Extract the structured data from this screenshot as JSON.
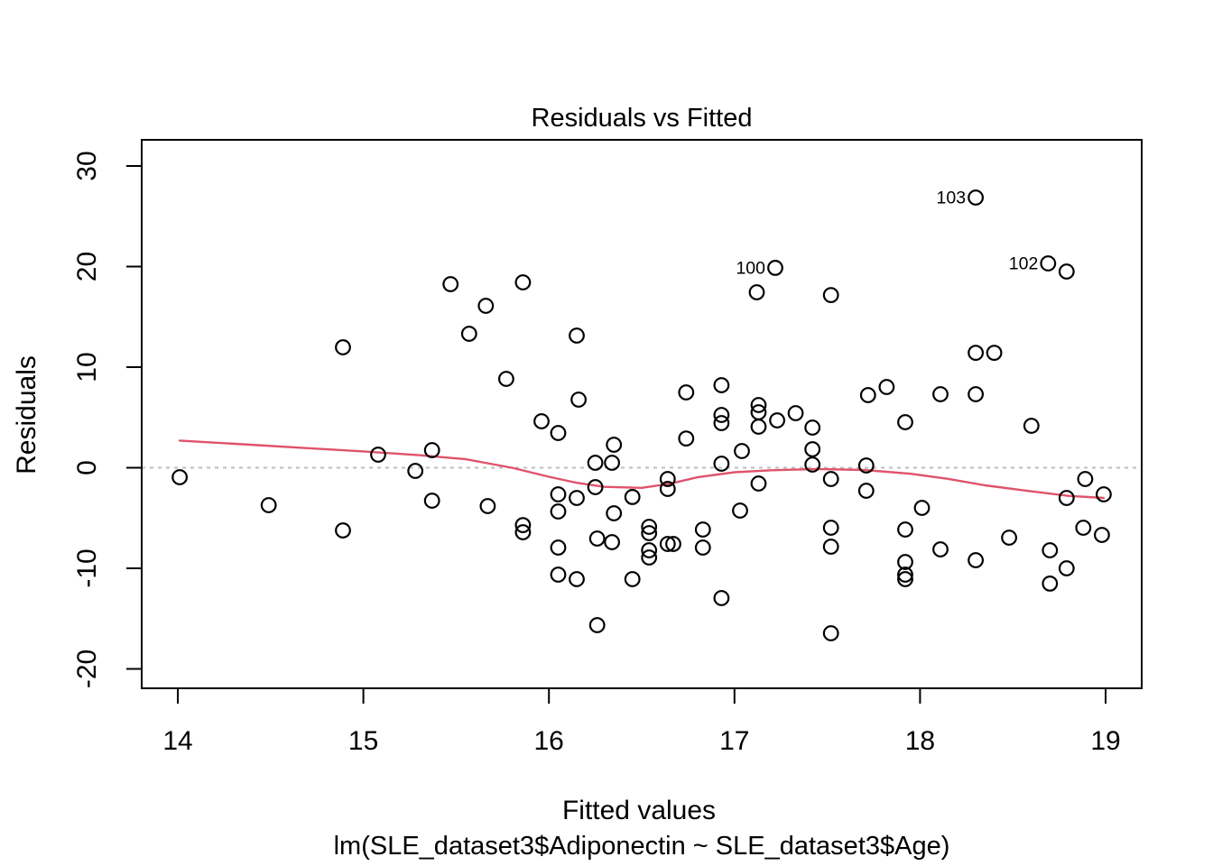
{
  "chart_data": {
    "type": "scatter",
    "title": "Residuals vs Fitted",
    "xlabel": "Fitted values",
    "ylabel": "Residuals",
    "subtitle": "lm(SLE_dataset3$Adiponectin ~ SLE_dataset3$Age)",
    "x_ticks": [
      14,
      15,
      16,
      17,
      18,
      19
    ],
    "y_ticks": [
      -20,
      -10,
      0,
      10,
      20,
      30
    ],
    "xlim": [
      13.8,
      19.2
    ],
    "ylim": [
      -21.9,
      32.6
    ],
    "grid": false,
    "zero_line": {
      "y": 0,
      "style": "dashed",
      "color": "#BEBEBE"
    },
    "colors": {
      "points": "#000000",
      "smooth_line": "#DF536B",
      "frame": "#000000"
    },
    "points": [
      [
        15.47,
        18.25
      ],
      [
        15.86,
        18.43
      ],
      [
        15.66,
        16.1
      ],
      [
        15.57,
        13.32
      ],
      [
        16.15,
        13.14
      ],
      [
        14.89,
        11.97
      ],
      [
        17.12,
        17.44
      ],
      [
        17.52,
        17.17
      ],
      [
        18.79,
        19.51
      ],
      [
        15.77,
        8.83
      ],
      [
        18.3,
        11.43
      ],
      [
        18.4,
        11.43
      ],
      [
        17.82,
        8.03
      ],
      [
        17.72,
        7.22
      ],
      [
        18.11,
        7.31
      ],
      [
        18.3,
        7.31
      ],
      [
        16.93,
        8.21
      ],
      [
        16.74,
        7.49
      ],
      [
        16.16,
        6.77
      ],
      [
        17.13,
        6.23
      ],
      [
        17.13,
        5.52
      ],
      [
        17.13,
        4.08
      ],
      [
        16.93,
        5.25
      ],
      [
        16.93,
        4.44
      ],
      [
        17.23,
        4.71
      ],
      [
        17.33,
        5.43
      ],
      [
        17.42,
        3.99
      ],
      [
        15.96,
        4.62
      ],
      [
        16.05,
        3.45
      ],
      [
        16.74,
        2.91
      ],
      [
        17.92,
        4.53
      ],
      [
        18.6,
        4.17
      ],
      [
        14.01,
        -0.94
      ],
      [
        15.08,
        1.3
      ],
      [
        15.37,
        1.75
      ],
      [
        15.28,
        -0.31
      ],
      [
        16.35,
        2.29
      ],
      [
        16.25,
        0.49
      ],
      [
        16.34,
        0.49
      ],
      [
        17.04,
        1.66
      ],
      [
        16.93,
        0.4
      ],
      [
        17.42,
        1.84
      ],
      [
        17.42,
        0.31
      ],
      [
        17.71,
        0.22
      ],
      [
        16.64,
        -1.12
      ],
      [
        16.64,
        -2.11
      ],
      [
        16.25,
        -1.93
      ],
      [
        17.52,
        -1.12
      ],
      [
        17.13,
        -1.57
      ],
      [
        18.89,
        -1.12
      ],
      [
        17.71,
        -2.29
      ],
      [
        18.79,
        -3.0
      ],
      [
        18.99,
        -2.65
      ],
      [
        16.05,
        -2.65
      ],
      [
        16.15,
        -3.0
      ],
      [
        16.45,
        -2.91
      ],
      [
        14.49,
        -3.72
      ],
      [
        15.37,
        -3.27
      ],
      [
        15.67,
        -3.81
      ],
      [
        17.03,
        -4.26
      ],
      [
        14.89,
        -6.23
      ],
      [
        15.86,
        -5.7
      ],
      [
        15.86,
        -6.41
      ],
      [
        16.05,
        -4.35
      ],
      [
        16.35,
        -4.53
      ],
      [
        16.54,
        -5.87
      ],
      [
        16.54,
        -6.5
      ],
      [
        16.26,
        -7.04
      ],
      [
        16.34,
        -7.4
      ],
      [
        16.64,
        -7.58
      ],
      [
        16.67,
        -7.58
      ],
      [
        16.83,
        -6.14
      ],
      [
        16.83,
        -7.94
      ],
      [
        16.05,
        -7.94
      ],
      [
        16.54,
        -8.21
      ],
      [
        16.54,
        -8.92
      ],
      [
        17.92,
        -6.14
      ],
      [
        17.52,
        -5.96
      ],
      [
        17.52,
        -7.85
      ],
      [
        18.11,
        -8.12
      ],
      [
        18.48,
        -6.95
      ],
      [
        18.7,
        -8.21
      ],
      [
        18.88,
        -5.96
      ],
      [
        18.98,
        -6.68
      ],
      [
        18.01,
        -3.99
      ],
      [
        16.05,
        -10.63
      ],
      [
        16.15,
        -11.08
      ],
      [
        16.45,
        -11.08
      ],
      [
        17.92,
        -9.37
      ],
      [
        17.92,
        -10.63
      ],
      [
        17.92,
        -11.08
      ],
      [
        18.3,
        -9.19
      ],
      [
        18.79,
        -10.0
      ],
      [
        18.7,
        -11.52
      ],
      [
        16.26,
        -15.65
      ],
      [
        16.93,
        -12.96
      ],
      [
        17.52,
        -16.46
      ]
    ],
    "labeled_points": [
      {
        "label": "100",
        "x": 17.22,
        "y": 19.87
      },
      {
        "label": "102",
        "x": 18.69,
        "y": 20.31
      },
      {
        "label": "103",
        "x": 18.3,
        "y": 26.86
      }
    ],
    "smooth_line": [
      [
        14.01,
        2.7
      ],
      [
        14.35,
        2.33
      ],
      [
        14.7,
        1.95
      ],
      [
        15.0,
        1.62
      ],
      [
        15.3,
        1.25
      ],
      [
        15.55,
        0.85
      ],
      [
        15.8,
        0.0
      ],
      [
        16.0,
        -0.9
      ],
      [
        16.15,
        -1.5
      ],
      [
        16.3,
        -1.9
      ],
      [
        16.5,
        -2.0
      ],
      [
        16.65,
        -1.6
      ],
      [
        16.8,
        -0.95
      ],
      [
        17.0,
        -0.45
      ],
      [
        17.2,
        -0.25
      ],
      [
        17.45,
        -0.13
      ],
      [
        17.7,
        -0.22
      ],
      [
        17.95,
        -0.6
      ],
      [
        18.15,
        -1.1
      ],
      [
        18.35,
        -1.75
      ],
      [
        18.6,
        -2.35
      ],
      [
        18.8,
        -2.8
      ],
      [
        18.99,
        -3.0
      ]
    ],
    "legend": null
  }
}
